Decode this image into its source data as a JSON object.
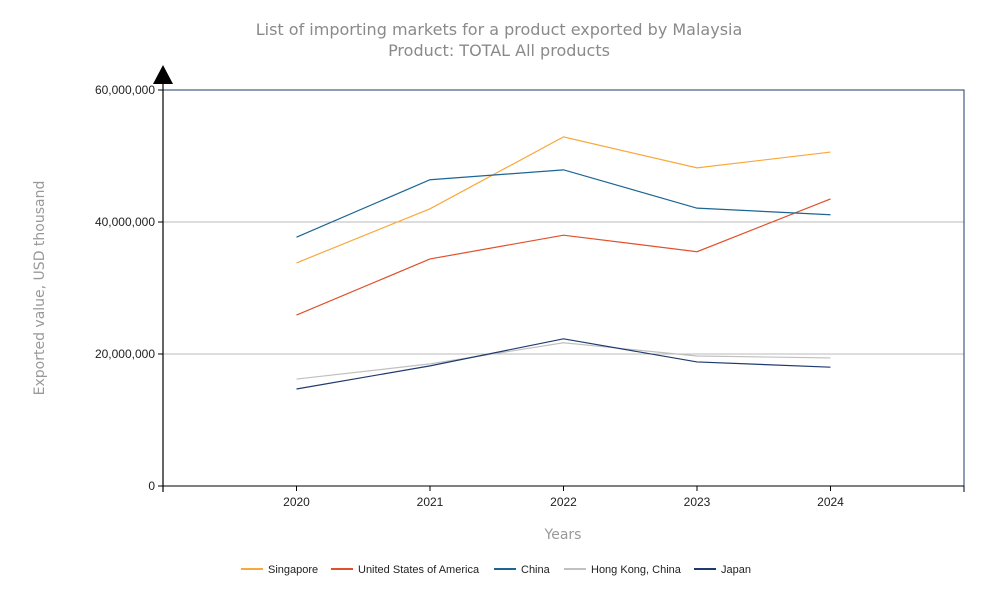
{
  "chart_data": {
    "type": "line",
    "title": "List of importing markets for a product exported by Malaysia",
    "subtitle": "Product: TOTAL All products",
    "xlabel": "Years",
    "ylabel": "Exported value, USD thousand",
    "x": [
      2020,
      2021,
      2022,
      2023,
      2024
    ],
    "xlim": [
      2019,
      2025
    ],
    "ylim": [
      0,
      60000000
    ],
    "yticks": [
      0,
      20000000,
      40000000,
      60000000
    ],
    "ytick_labels": [
      "0",
      "20,000,000",
      "40,000,000",
      "60,000,000"
    ],
    "xtick_labels": [
      "2020",
      "2021",
      "2022",
      "2023",
      "2024"
    ],
    "grid": "horizontal",
    "legend_position": "bottom",
    "series": [
      {
        "name": "Singapore",
        "color": "#F9A83A",
        "values": [
          33800000,
          42000000,
          52900000,
          48200000,
          50600000
        ]
      },
      {
        "name": "United States of America",
        "color": "#E0502A",
        "values": [
          25900000,
          34400000,
          38000000,
          35500000,
          43500000
        ]
      },
      {
        "name": "China",
        "color": "#1C6594",
        "values": [
          37700000,
          46400000,
          47900000,
          42100000,
          41100000
        ]
      },
      {
        "name": "Hong Kong, China",
        "color": "#C0C0C0",
        "values": [
          16200000,
          18500000,
          21700000,
          19700000,
          19400000
        ]
      },
      {
        "name": "Japan",
        "color": "#1F3A6E",
        "values": [
          14700000,
          18200000,
          22300000,
          18800000,
          18000000
        ]
      }
    ]
  }
}
